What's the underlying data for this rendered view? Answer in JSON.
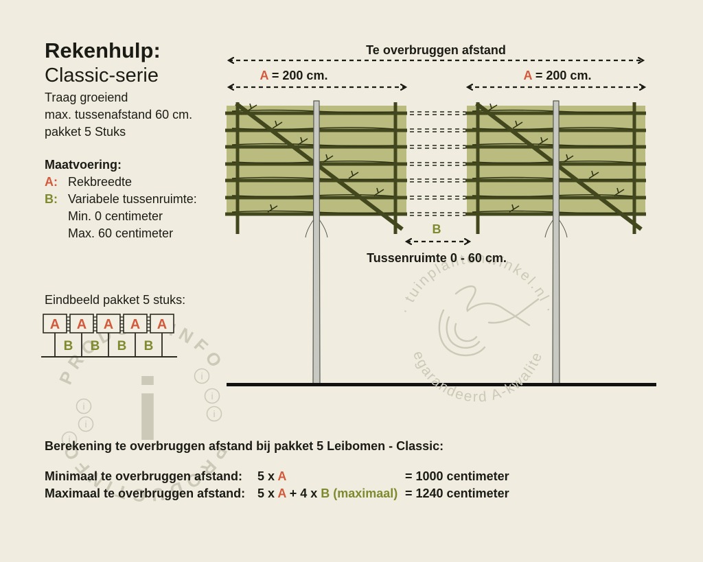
{
  "colors": {
    "accent_a": "#d2593b",
    "accent_b": "#7d8a2e",
    "text": "#1b1b15",
    "background": "#f0ecdf",
    "panel_green": "#b9bc7e",
    "bar_olive": "#43471d",
    "branch_dark": "#2e3214",
    "trunk_gray": "#c9c9c3",
    "trunk_edge": "#55584d",
    "ground_black": "#111111",
    "watermark_gray": "#cdc9b8"
  },
  "header": {
    "title": "Rekenhulp:",
    "subtitle": "Classic-serie",
    "lines": [
      "Traag groeiend",
      "max. tussenafstand 60 cm.",
      "pakket 5 Stuks"
    ]
  },
  "maatvoering": {
    "heading": "Maatvoering:",
    "rows": [
      {
        "key": "A:",
        "text": "Rekbreedte"
      },
      {
        "key": "B:",
        "text": "Variabele tussenruimte:"
      }
    ],
    "sub": [
      "Min. 0 centimeter",
      "Max. 60 centimeter"
    ]
  },
  "eindbeeld": {
    "heading": "Eindbeeld pakket 5 stuks:",
    "a_label": "A",
    "b_label": "B",
    "a_count": 5,
    "b_count": 4
  },
  "diagram": {
    "top_arrow_label": "Te overbruggen afstand",
    "span_a_left": {
      "a": "A",
      "rest": " = 200 cm."
    },
    "span_a_right": {
      "a": "A",
      "rest": " = 200 cm."
    },
    "b_label": "B",
    "gap_label": "Tussenruimte 0 - 60 cm."
  },
  "watermarks": {
    "left": {
      "word": "PRODUCTINFO",
      "center_glyph": "i",
      "badge_glyph": "i"
    },
    "right": {
      "top": "· tuinplantenwinkel.nl ·",
      "bottom": "gegarandeerd A-kwaliteit"
    }
  },
  "calculation": {
    "heading": "Berekening te overbruggen afstand bij pakket 5 Leibomen - Classic:",
    "rows": [
      {
        "label": "Minimaal te overbruggen afstand:",
        "parts": [
          {
            "t": "5 x ",
            "c": "plain"
          },
          {
            "t": "A",
            "c": "a"
          }
        ],
        "result": "= 1000 centimeter"
      },
      {
        "label": "Maximaal te overbruggen afstand:",
        "parts": [
          {
            "t": "5 x ",
            "c": "plain"
          },
          {
            "t": "A",
            "c": "a"
          },
          {
            "t": " + 4 x ",
            "c": "plain"
          },
          {
            "t": "B (maximaal)",
            "c": "b"
          }
        ],
        "result": "= 1240 centimeter"
      }
    ]
  }
}
